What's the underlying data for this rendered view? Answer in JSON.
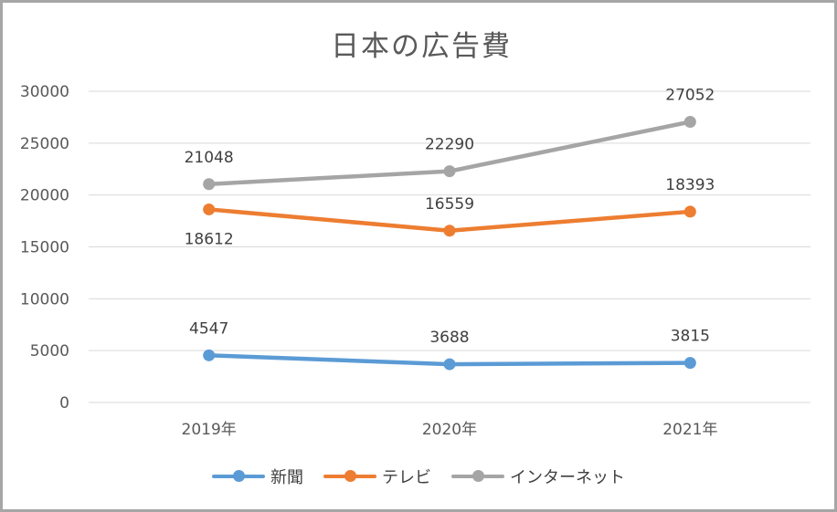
{
  "chart_data": {
    "type": "line",
    "title": "日本の広告費",
    "categories": [
      "2019年",
      "2020年",
      "2021年"
    ],
    "ylim": [
      0,
      30000
    ],
    "yticks": [
      0,
      5000,
      10000,
      15000,
      20000,
      25000,
      30000
    ],
    "grid": true,
    "legend_position": "bottom",
    "series": [
      {
        "name": "新聞",
        "values": [
          4547,
          3688,
          3815
        ],
        "color": "#5b9bd5"
      },
      {
        "name": "テレビ",
        "values": [
          18612,
          16559,
          18393
        ],
        "color": "#ed7d31"
      },
      {
        "name": "インターネット",
        "values": [
          21048,
          22290,
          27052
        ],
        "color": "#a5a5a5"
      }
    ]
  }
}
